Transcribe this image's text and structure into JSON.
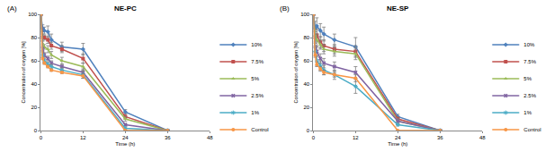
{
  "chart_data": [
    {
      "type": "line",
      "annotation": "(A)",
      "title": "NE-PC",
      "x_label": "Time (h)",
      "y_label": "Concentration of oxygen [%]",
      "x": [
        0,
        0.5,
        1,
        2,
        3,
        6,
        12,
        24,
        36
      ],
      "xlim": [
        0,
        48
      ],
      "xticks": [
        0,
        12,
        24,
        36,
        48
      ],
      "ylim": [
        0,
        100
      ],
      "yticks": [
        0,
        20,
        40,
        60,
        80,
        100
      ],
      "grid": false,
      "legend": "right",
      "series": [
        {
          "name": "10%",
          "color": "#4f81bd",
          "marker": "diamond",
          "values": [
            100,
            88,
            86,
            85,
            78,
            72,
            70,
            16,
            0
          ],
          "errors": [
            0,
            3,
            3,
            5,
            5,
            4,
            5,
            2,
            0
          ]
        },
        {
          "name": "7.5%",
          "color": "#c0504d",
          "marker": "square",
          "values": [
            100,
            80,
            80,
            78,
            73,
            70,
            62,
            12,
            0
          ],
          "errors": [
            0,
            3,
            2,
            3,
            3,
            3,
            4,
            2,
            0
          ]
        },
        {
          "name": "5%",
          "color": "#9bbb59",
          "marker": "triangle-up",
          "values": [
            100,
            75,
            72,
            70,
            65,
            60,
            55,
            10,
            0
          ],
          "errors": [
            0,
            2,
            2,
            3,
            3,
            3,
            3,
            2,
            0
          ]
        },
        {
          "name": "2.5%",
          "color": "#8064a2",
          "marker": "x",
          "values": [
            100,
            70,
            65,
            62,
            58,
            55,
            50,
            5,
            0
          ],
          "errors": [
            0,
            2,
            2,
            2,
            2,
            2,
            3,
            1,
            0
          ]
        },
        {
          "name": "1%",
          "color": "#4bacc6",
          "marker": "asterisk-open",
          "values": [
            100,
            65,
            60,
            57,
            55,
            52,
            48,
            2,
            0
          ],
          "errors": [
            0,
            2,
            2,
            2,
            2,
            2,
            3,
            1,
            0
          ]
        },
        {
          "name": "Control",
          "color": "#f79646",
          "marker": "circle",
          "values": [
            100,
            62,
            58,
            55,
            52,
            50,
            47,
            0,
            0
          ],
          "errors": [
            0,
            1,
            1,
            1,
            1,
            1,
            2,
            0,
            0
          ]
        }
      ]
    },
    {
      "type": "line",
      "annotation": "(B)",
      "title": "NE-SP",
      "x_label": "Time (h)",
      "y_label": "Concentration of oxygen [%]",
      "x": [
        0,
        0.5,
        1,
        2,
        3,
        6,
        12,
        24,
        36
      ],
      "xlim": [
        0,
        48
      ],
      "xticks": [
        0,
        12,
        24,
        36,
        48
      ],
      "ylim": [
        0,
        100
      ],
      "yticks": [
        0,
        20,
        40,
        60,
        80,
        100
      ],
      "grid": false,
      "legend": "right",
      "series": [
        {
          "name": "10%",
          "color": "#4f81bd",
          "marker": "diamond",
          "values": [
            100,
            88,
            90,
            86,
            83,
            78,
            72,
            12,
            0
          ],
          "errors": [
            0,
            6,
            7,
            6,
            6,
            5,
            8,
            2,
            0
          ]
        },
        {
          "name": "7.5%",
          "color": "#c0504d",
          "marker": "square",
          "values": [
            100,
            80,
            82,
            76,
            73,
            70,
            68,
            10,
            0
          ],
          "errors": [
            0,
            5,
            5,
            5,
            5,
            4,
            5,
            2,
            0
          ]
        },
        {
          "name": "5%",
          "color": "#9bbb59",
          "marker": "triangle-up",
          "values": [
            100,
            82,
            78,
            74,
            70,
            68,
            66,
            8,
            0
          ],
          "errors": [
            0,
            5,
            5,
            4,
            4,
            4,
            5,
            2,
            0
          ]
        },
        {
          "name": "2.5%",
          "color": "#8064a2",
          "marker": "x",
          "values": [
            100,
            72,
            68,
            62,
            58,
            55,
            50,
            8,
            0
          ],
          "errors": [
            0,
            4,
            4,
            4,
            4,
            4,
            5,
            2,
            0
          ]
        },
        {
          "name": "1%",
          "color": "#4bacc6",
          "marker": "asterisk-open",
          "values": [
            100,
            68,
            60,
            56,
            52,
            48,
            38,
            5,
            0
          ],
          "errors": [
            0,
            4,
            4,
            4,
            4,
            4,
            6,
            1,
            0
          ]
        },
        {
          "name": "Control",
          "color": "#f79646",
          "marker": "circle",
          "values": [
            100,
            65,
            57,
            53,
            50,
            48,
            45,
            0,
            0
          ],
          "errors": [
            0,
            2,
            2,
            2,
            2,
            2,
            3,
            0,
            0
          ]
        }
      ]
    }
  ]
}
